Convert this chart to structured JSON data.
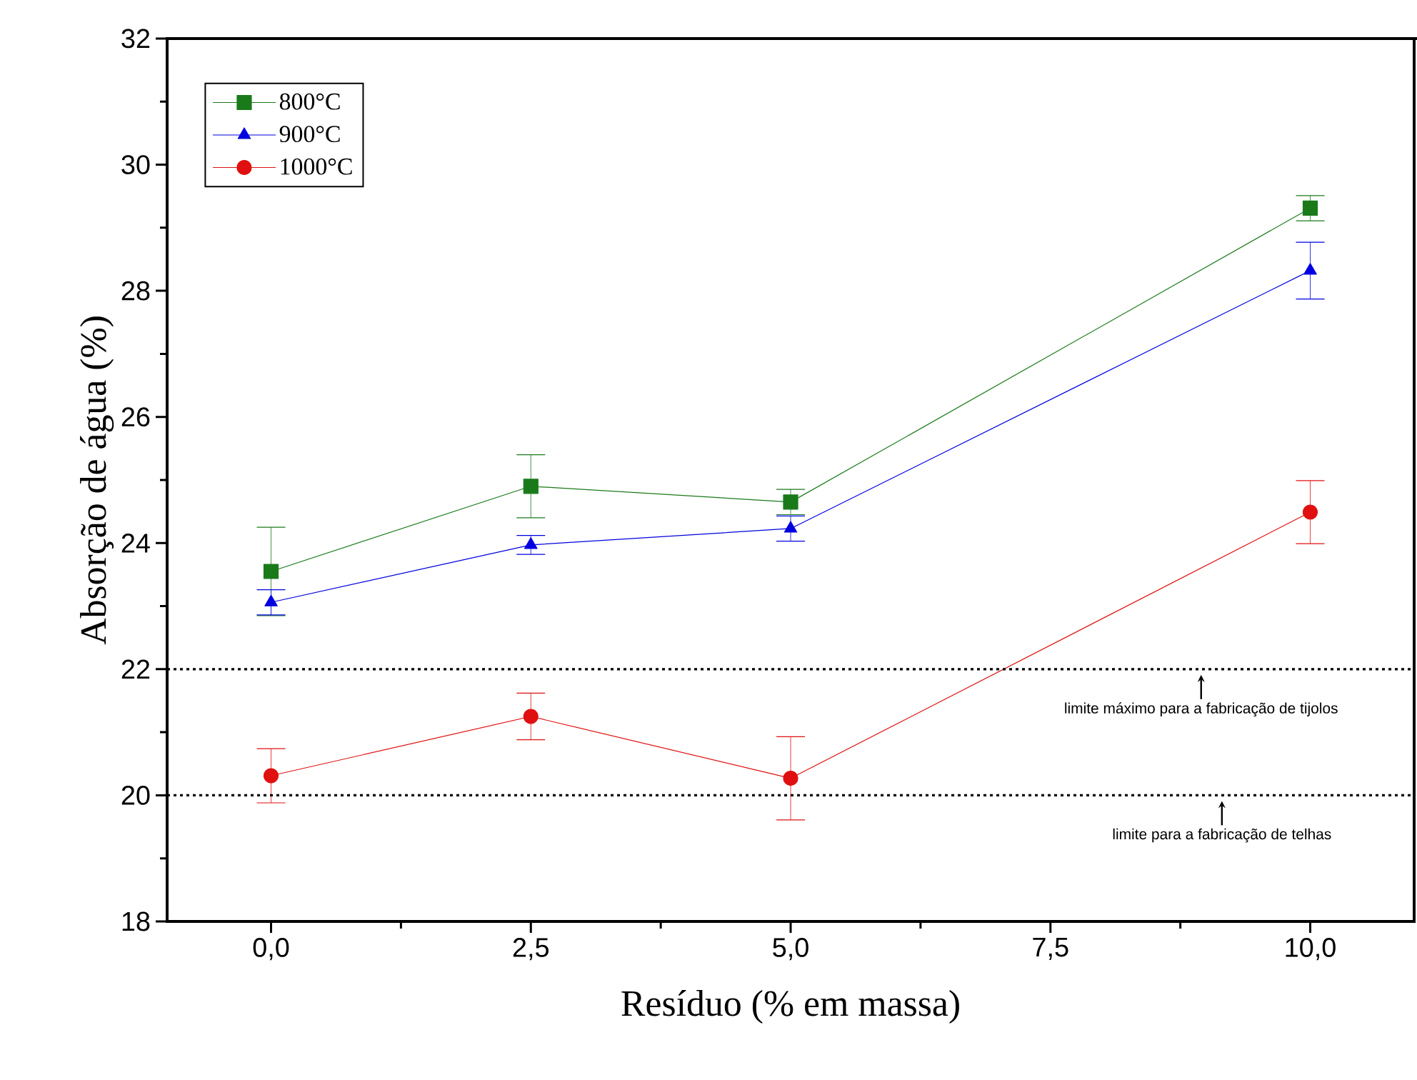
{
  "chart_data": {
    "type": "line",
    "xlabel": "Resíduo (% em massa)",
    "ylabel": "Absorção de água (%)",
    "x": [
      0,
      2.5,
      5,
      10
    ],
    "series": [
      {
        "name": "800°C",
        "color": "#1a7a1a",
        "marker": "square",
        "values": [
          23.55,
          24.9,
          24.65,
          29.31
        ],
        "errors": [
          0.7,
          0.5,
          0.2,
          0.2
        ]
      },
      {
        "name": "900°C",
        "color": "#0000e0",
        "marker": "triangle",
        "values": [
          23.06,
          23.97,
          24.23,
          28.32
        ],
        "errors": [
          0.2,
          0.15,
          0.2,
          0.45
        ]
      },
      {
        "name": "1000°C",
        "color": "#e01010",
        "marker": "circle",
        "values": [
          20.31,
          21.25,
          20.27,
          24.49
        ],
        "errors": [
          0.43,
          0.37,
          0.66,
          0.5
        ]
      }
    ],
    "xlim": [
      -1,
      11
    ],
    "ylim": [
      18,
      32
    ],
    "xticks": [
      {
        "value": 0,
        "label": "0,0"
      },
      {
        "value": 2.5,
        "label": "2,5"
      },
      {
        "value": 5,
        "label": "5,0"
      },
      {
        "value": 7.5,
        "label": "7,5"
      },
      {
        "value": 10,
        "label": "10,0"
      }
    ],
    "yticks": [
      18,
      20,
      22,
      24,
      26,
      28,
      30,
      32
    ],
    "ref_lines": [
      {
        "axis": "y",
        "value": 22,
        "label": "limite máximo para a fabricação de tijolos",
        "line_style": "dotted",
        "color": "#000000"
      },
      {
        "axis": "y",
        "value": 20,
        "label": "limite para a fabricação de telhas",
        "line_style": "dotted",
        "color": "#000000"
      }
    ],
    "legend": "top left",
    "grid": false
  }
}
